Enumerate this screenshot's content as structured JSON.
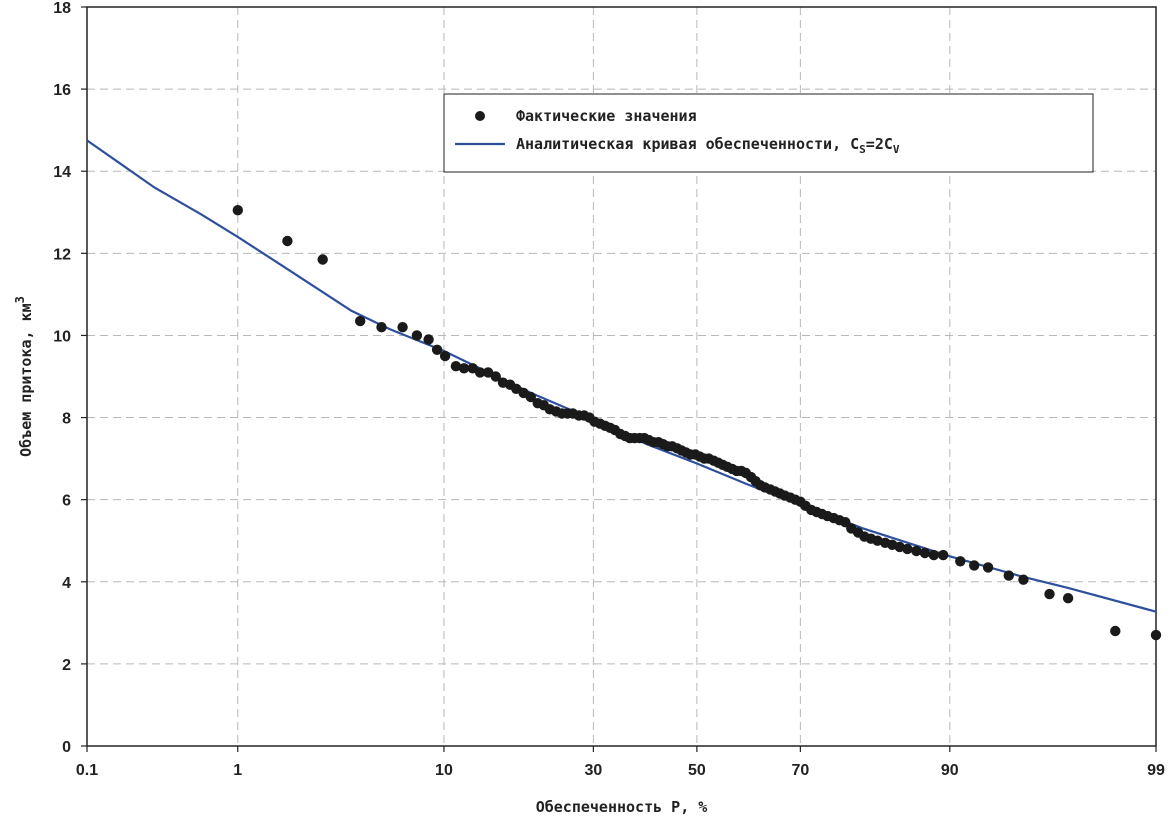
{
  "chart_data": {
    "type": "scatter",
    "xlabel": "Обеспеченность P, %",
    "ylabel": "Объем притока, км",
    "ylabel_superscript": "3",
    "xlim": [
      0.1,
      99
    ],
    "ylim": [
      0,
      18
    ],
    "x_scale": "probability",
    "x_ticks": [
      {
        "value": 0.1,
        "label": "0.1"
      },
      {
        "value": 1,
        "label": "1"
      },
      {
        "value": 10,
        "label": "10"
      },
      {
        "value": 30,
        "label": "30"
      },
      {
        "value": 50,
        "label": "50"
      },
      {
        "value": 70,
        "label": "70"
      },
      {
        "value": 90,
        "label": "90"
      },
      {
        "value": 99,
        "label": "99"
      }
    ],
    "y_ticks": [
      {
        "value": 0,
        "label": "0"
      },
      {
        "value": 2,
        "label": "2"
      },
      {
        "value": 4,
        "label": "4"
      },
      {
        "value": 6,
        "label": "6"
      },
      {
        "value": 8,
        "label": "8"
      },
      {
        "value": 10,
        "label": "10"
      },
      {
        "value": 12,
        "label": "12"
      },
      {
        "value": 14,
        "label": "14"
      },
      {
        "value": 16,
        "label": "16"
      },
      {
        "value": 18,
        "label": "18"
      }
    ],
    "grid": true,
    "legend_position": "top-right",
    "series": [
      {
        "name": "Фактические значения",
        "kind": "points",
        "color": "#1a1a1a",
        "points": [
          [
            1.0,
            13.05
          ],
          [
            1.9,
            12.3
          ],
          [
            2.9,
            11.85
          ],
          [
            4.4,
            10.35
          ],
          [
            5.5,
            10.2
          ],
          [
            6.8,
            10.2
          ],
          [
            7.8,
            10.0
          ],
          [
            8.7,
            9.9
          ],
          [
            9.4,
            9.65
          ],
          [
            10.1,
            9.5
          ],
          [
            11.1,
            9.25
          ],
          [
            11.9,
            9.2
          ],
          [
            12.8,
            9.2
          ],
          [
            13.6,
            9.1
          ],
          [
            14.5,
            9.1
          ],
          [
            15.4,
            9.0
          ],
          [
            16.3,
            8.85
          ],
          [
            17.2,
            8.8
          ],
          [
            18.0,
            8.7
          ],
          [
            19.0,
            8.6
          ],
          [
            20.0,
            8.5
          ],
          [
            21.0,
            8.35
          ],
          [
            21.9,
            8.3
          ],
          [
            22.8,
            8.2
          ],
          [
            23.8,
            8.15
          ],
          [
            24.7,
            8.1
          ],
          [
            25.6,
            8.1
          ],
          [
            26.5,
            8.1
          ],
          [
            27.5,
            8.05
          ],
          [
            28.4,
            8.05
          ],
          [
            29.3,
            8.0
          ],
          [
            30.2,
            7.9
          ],
          [
            31.2,
            7.85
          ],
          [
            32.1,
            7.8
          ],
          [
            33.0,
            7.75
          ],
          [
            33.9,
            7.7
          ],
          [
            34.9,
            7.6
          ],
          [
            35.8,
            7.55
          ],
          [
            36.7,
            7.5
          ],
          [
            37.6,
            7.5
          ],
          [
            38.6,
            7.5
          ],
          [
            39.5,
            7.5
          ],
          [
            40.4,
            7.45
          ],
          [
            41.3,
            7.4
          ],
          [
            42.3,
            7.4
          ],
          [
            43.2,
            7.35
          ],
          [
            44.1,
            7.3
          ],
          [
            45.0,
            7.3
          ],
          [
            46.0,
            7.25
          ],
          [
            46.9,
            7.2
          ],
          [
            47.8,
            7.15
          ],
          [
            48.7,
            7.1
          ],
          [
            49.7,
            7.1
          ],
          [
            50.6,
            7.05
          ],
          [
            51.5,
            7.0
          ],
          [
            52.4,
            7.0
          ],
          [
            53.4,
            6.95
          ],
          [
            54.3,
            6.9
          ],
          [
            55.2,
            6.85
          ],
          [
            56.1,
            6.8
          ],
          [
            57.1,
            6.75
          ],
          [
            58.0,
            6.7
          ],
          [
            58.9,
            6.7
          ],
          [
            59.8,
            6.65
          ],
          [
            60.8,
            6.55
          ],
          [
            61.7,
            6.45
          ],
          [
            62.6,
            6.35
          ],
          [
            63.5,
            6.3
          ],
          [
            64.5,
            6.25
          ],
          [
            65.4,
            6.2
          ],
          [
            66.3,
            6.15
          ],
          [
            67.2,
            6.1
          ],
          [
            68.2,
            6.05
          ],
          [
            69.1,
            6.0
          ],
          [
            70.0,
            5.95
          ],
          [
            70.9,
            5.85
          ],
          [
            71.9,
            5.75
          ],
          [
            72.8,
            5.7
          ],
          [
            73.7,
            5.65
          ],
          [
            74.6,
            5.6
          ],
          [
            75.6,
            5.55
          ],
          [
            76.5,
            5.5
          ],
          [
            77.4,
            5.45
          ],
          [
            78.3,
            5.3
          ],
          [
            79.3,
            5.2
          ],
          [
            80.2,
            5.1
          ],
          [
            81.1,
            5.05
          ],
          [
            82.0,
            5.0
          ],
          [
            83.0,
            4.95
          ],
          [
            83.9,
            4.9
          ],
          [
            84.8,
            4.85
          ],
          [
            85.7,
            4.8
          ],
          [
            86.7,
            4.75
          ],
          [
            87.6,
            4.7
          ],
          [
            88.5,
            4.65
          ],
          [
            89.4,
            4.65
          ],
          [
            90.9,
            4.5
          ],
          [
            92.0,
            4.4
          ],
          [
            93.0,
            4.35
          ],
          [
            94.3,
            4.15
          ],
          [
            95.1,
            4.05
          ],
          [
            96.3,
            3.7
          ],
          [
            97.0,
            3.6
          ],
          [
            98.3,
            2.8
          ],
          [
            99.0,
            2.7
          ]
        ]
      },
      {
        "name": "Аналитическая кривая обеспеченности, C",
        "name_sub1": "S",
        "name_mid": "=2C",
        "name_sub2": "V",
        "kind": "line",
        "color": "#2e4f9c",
        "points": [
          [
            0.1,
            14.75
          ],
          [
            0.3,
            13.6
          ],
          [
            0.6,
            12.95
          ],
          [
            1.0,
            12.4
          ],
          [
            2.0,
            11.55
          ],
          [
            4.0,
            10.6
          ],
          [
            6.0,
            10.15
          ],
          [
            10.0,
            9.62
          ],
          [
            15.0,
            9.05
          ],
          [
            20.0,
            8.6
          ],
          [
            30.0,
            7.95
          ],
          [
            40.0,
            7.35
          ],
          [
            50.0,
            6.88
          ],
          [
            60.0,
            6.38
          ],
          [
            70.0,
            5.88
          ],
          [
            80.0,
            5.3
          ],
          [
            90.0,
            4.62
          ],
          [
            95.0,
            4.13
          ],
          [
            97.0,
            3.85
          ],
          [
            99.0,
            3.27
          ]
        ]
      }
    ]
  }
}
